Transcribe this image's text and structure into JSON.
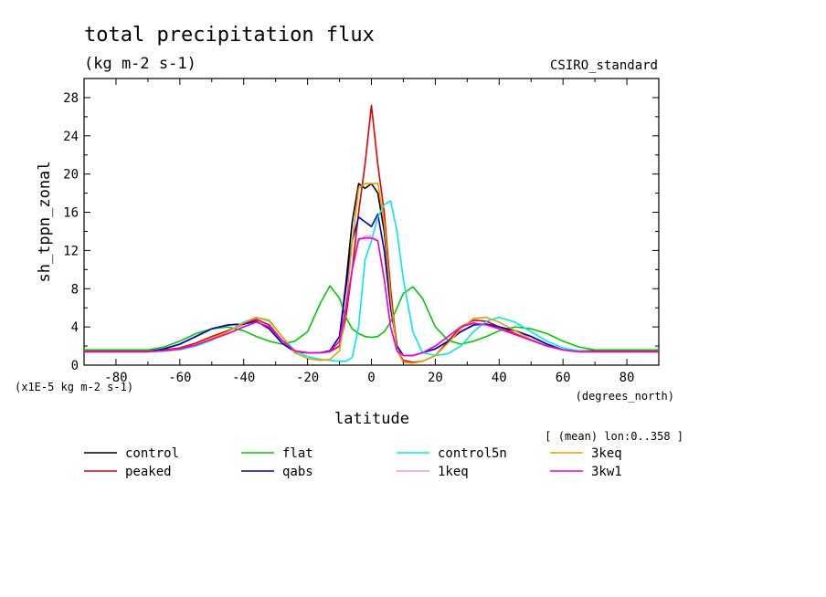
{
  "chart_data": {
    "type": "line",
    "title": "total precipitation flux",
    "units": "(kg m-2 s-1)",
    "source": "CSIRO_standard",
    "ylabel": "sh_tppn_zonal",
    "xlabel": "latitude",
    "x_units": "(degrees_north)",
    "scale_note": "(x1E-5 kg m-2 s-1)",
    "mean_note": "[ (mean) lon:0..358 ]",
    "xlim": [
      -90,
      90
    ],
    "ylim": [
      0,
      30
    ],
    "xticks": [
      -80,
      -60,
      -40,
      -20,
      0,
      20,
      40,
      60,
      80
    ],
    "yticks": [
      0,
      4,
      8,
      12,
      16,
      20,
      24,
      28
    ],
    "x": [
      -90,
      -80,
      -70,
      -65,
      -60,
      -55,
      -50,
      -45,
      -40,
      -36,
      -32,
      -28,
      -24,
      -20,
      -16,
      -13,
      -10,
      -8,
      -6,
      -4,
      -2,
      0,
      2,
      4,
      6,
      8,
      10,
      13,
      16,
      20,
      24,
      28,
      32,
      36,
      40,
      45,
      50,
      55,
      60,
      65,
      70,
      80,
      90
    ],
    "series": [
      {
        "name": "control",
        "color": "#000000",
        "values": [
          1.4,
          1.4,
          1.4,
          1.7,
          2.2,
          3.0,
          3.8,
          4.2,
          4.3,
          4.6,
          3.8,
          2.3,
          1.4,
          1.3,
          1.3,
          1.5,
          3.0,
          8.5,
          15.0,
          19.0,
          18.5,
          19.0,
          18.0,
          14.0,
          7.0,
          2.0,
          1.0,
          1.0,
          1.3,
          1.7,
          2.5,
          3.5,
          4.2,
          4.3,
          4.0,
          3.6,
          3.0,
          2.2,
          1.6,
          1.4,
          1.4,
          1.4,
          1.4
        ]
      },
      {
        "name": "peaked",
        "color": "#e00000",
        "values": [
          1.5,
          1.5,
          1.5,
          1.6,
          1.8,
          2.3,
          3.0,
          3.6,
          4.3,
          4.8,
          4.2,
          2.6,
          1.5,
          1.3,
          1.3,
          1.4,
          2.0,
          5.0,
          10.0,
          16.0,
          21.0,
          27.2,
          21.0,
          16.0,
          8.0,
          1.5,
          0.5,
          0.3,
          0.4,
          1.0,
          2.5,
          4.0,
          4.7,
          4.6,
          4.0,
          3.3,
          2.6,
          2.0,
          1.6,
          1.5,
          1.5,
          1.5,
          1.5
        ]
      },
      {
        "name": "flat",
        "color": "#00cc00",
        "values": [
          1.6,
          1.6,
          1.6,
          1.9,
          2.5,
          3.3,
          3.8,
          4.0,
          3.6,
          3.0,
          2.5,
          2.2,
          2.5,
          3.5,
          6.5,
          8.3,
          7.0,
          5.0,
          3.8,
          3.3,
          3.0,
          2.9,
          3.0,
          3.5,
          4.5,
          6.0,
          7.5,
          8.2,
          7.0,
          4.0,
          2.6,
          2.2,
          2.5,
          3.0,
          3.6,
          4.0,
          3.8,
          3.3,
          2.5,
          1.9,
          1.6,
          1.6,
          1.6
        ]
      },
      {
        "name": "qabs",
        "color": "#0000cc",
        "values": [
          1.4,
          1.4,
          1.4,
          1.7,
          2.2,
          3.0,
          3.8,
          4.2,
          4.3,
          4.6,
          3.8,
          2.3,
          1.4,
          1.3,
          1.3,
          1.5,
          3.0,
          8.0,
          13.0,
          15.5,
          15.0,
          14.5,
          15.8,
          12.0,
          6.0,
          2.0,
          1.0,
          1.0,
          1.3,
          1.7,
          2.5,
          3.5,
          4.2,
          4.3,
          4.0,
          3.6,
          3.0,
          2.2,
          1.6,
          1.4,
          1.4,
          1.4,
          1.4
        ]
      },
      {
        "name": "control5n",
        "color": "#00e8e8",
        "values": [
          1.4,
          1.4,
          1.4,
          1.5,
          1.6,
          2.0,
          2.6,
          3.5,
          4.5,
          5.0,
          4.6,
          3.0,
          1.5,
          0.9,
          0.6,
          0.5,
          0.4,
          0.4,
          0.8,
          4.0,
          11.0,
          13.0,
          15.5,
          16.8,
          17.2,
          14.0,
          9.0,
          3.5,
          1.3,
          1.0,
          1.2,
          2.0,
          3.5,
          4.6,
          5.0,
          4.5,
          3.5,
          2.5,
          1.8,
          1.5,
          1.4,
          1.4,
          1.4
        ]
      },
      {
        "name": "1keq",
        "color": "#ee99dd",
        "values": [
          1.4,
          1.4,
          1.4,
          1.5,
          1.7,
          2.1,
          2.7,
          3.3,
          4.0,
          4.5,
          4.0,
          2.6,
          1.5,
          1.3,
          1.3,
          1.4,
          2.5,
          6.0,
          10.0,
          13.0,
          13.5,
          13.5,
          13.0,
          9.0,
          4.0,
          1.5,
          1.0,
          1.0,
          1.3,
          2.0,
          3.0,
          4.0,
          4.4,
          4.2,
          3.8,
          3.2,
          2.6,
          2.0,
          1.6,
          1.4,
          1.4,
          1.4,
          1.4
        ]
      },
      {
        "name": "3keq",
        "color": "#e8a000",
        "values": [
          1.4,
          1.4,
          1.4,
          1.5,
          1.7,
          2.1,
          2.8,
          3.5,
          4.4,
          5.0,
          4.7,
          3.0,
          1.3,
          0.7,
          0.5,
          0.6,
          1.5,
          6.0,
          13.0,
          18.5,
          19.0,
          19.0,
          19.0,
          15.0,
          7.0,
          1.5,
          0.3,
          0.2,
          0.4,
          1.0,
          2.3,
          3.8,
          4.9,
          5.0,
          4.5,
          3.6,
          2.7,
          2.0,
          1.6,
          1.4,
          1.4,
          1.4,
          1.4
        ]
      },
      {
        "name": "3kw1",
        "color": "#ee00cc",
        "values": [
          1.4,
          1.4,
          1.4,
          1.5,
          1.7,
          2.1,
          2.7,
          3.3,
          4.0,
          4.5,
          4.0,
          2.6,
          1.5,
          1.3,
          1.3,
          1.4,
          2.5,
          6.0,
          10.0,
          13.2,
          13.3,
          13.3,
          13.0,
          9.0,
          4.0,
          1.5,
          1.0,
          1.0,
          1.3,
          2.0,
          3.0,
          4.0,
          4.4,
          4.2,
          3.8,
          3.2,
          2.6,
          2.0,
          1.6,
          1.4,
          1.4,
          1.4,
          1.4
        ]
      }
    ],
    "legend": {
      "placement": "bottom",
      "rows": [
        [
          "control",
          "flat",
          "control5n",
          "3keq"
        ],
        [
          "peaked",
          "qabs",
          "1keq",
          "3kw1"
        ]
      ]
    }
  }
}
